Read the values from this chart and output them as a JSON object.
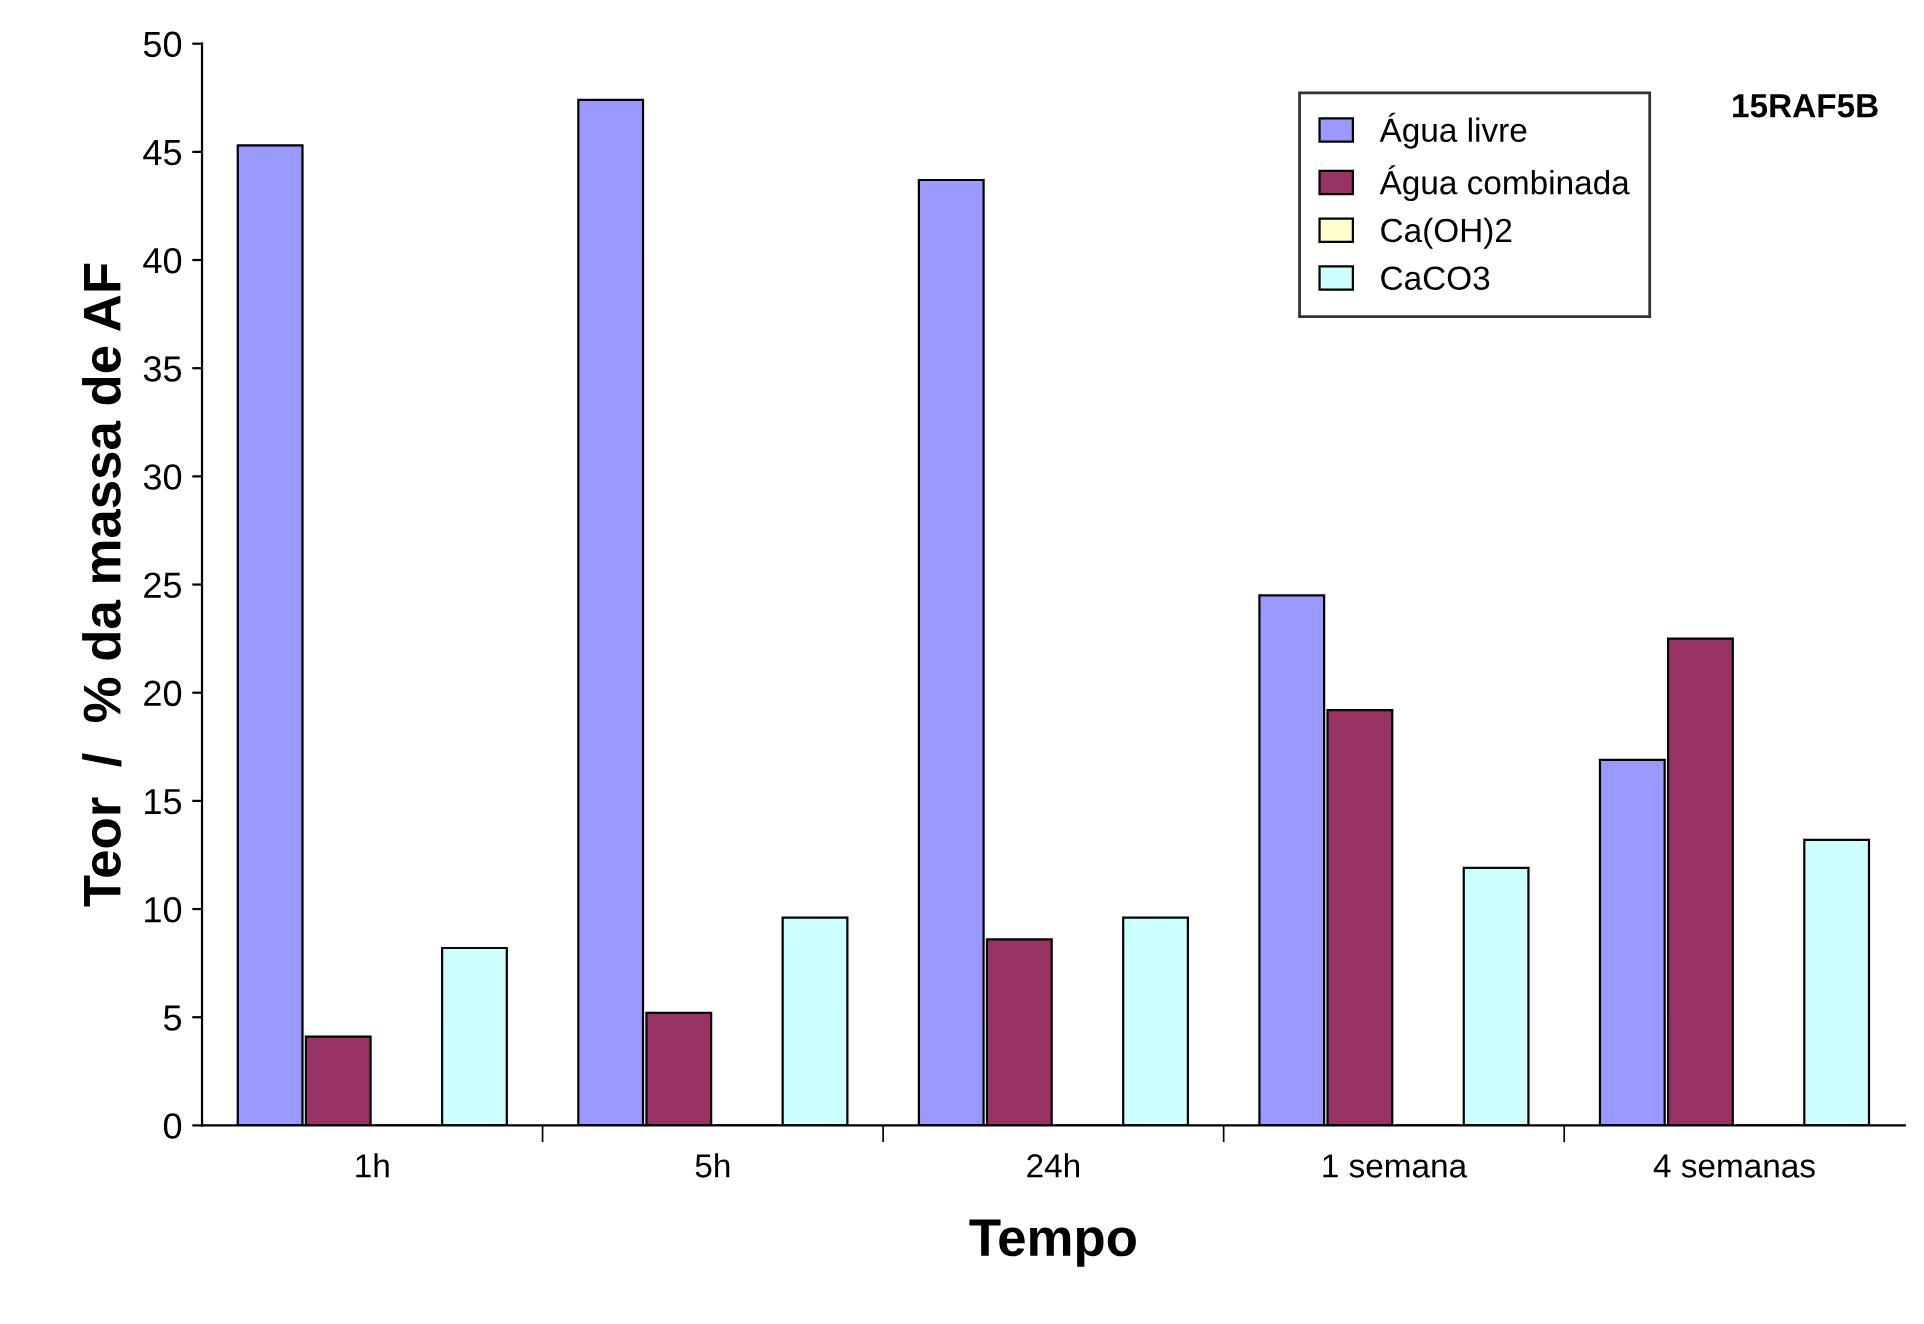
{
  "chart_data": {
    "type": "bar",
    "xlabel": "Tempo",
    "ylabel": "Teor  /  % da massa de AF",
    "categories": [
      "1h",
      "5h",
      "24h",
      "1 semana",
      "4 semanas"
    ],
    "series": [
      {
        "name": "Água livre",
        "color": "#9999ff",
        "values": [
          45.3,
          47.4,
          43.7,
          24.5,
          16.9
        ]
      },
      {
        "name": "Água combinada",
        "color": "#993366",
        "values": [
          4.1,
          5.2,
          8.6,
          19.2,
          22.5
        ]
      },
      {
        "name": "Ca(OH)2",
        "color": "#ffffcc",
        "values": [
          0,
          0,
          0,
          0,
          0
        ]
      },
      {
        "name": "CaCO3",
        "color": "#ccffff",
        "values": [
          8.2,
          9.6,
          9.6,
          11.9,
          13.2
        ]
      }
    ],
    "ylim": [
      0,
      50
    ],
    "yticks": [
      0,
      5,
      10,
      15,
      20,
      25,
      30,
      35,
      40,
      45,
      50
    ],
    "grid": false,
    "legend": "top right",
    "annotations": [
      "15RAF5B"
    ]
  }
}
